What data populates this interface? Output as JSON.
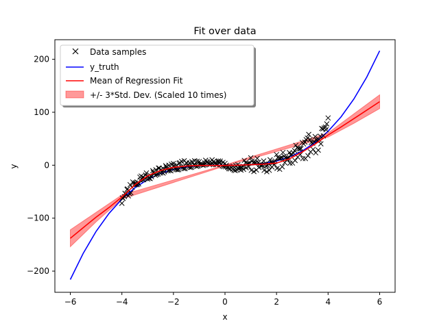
{
  "chart_data": {
    "type": "line",
    "title": "Fit over data",
    "xlabel": "x",
    "ylabel": "y",
    "xlim": [
      -6.6,
      6.6
    ],
    "ylim": [
      -240,
      237
    ],
    "xticks": [
      -6,
      -4,
      -2,
      0,
      2,
      4,
      6
    ],
    "yticks": [
      -200,
      -100,
      0,
      100,
      200
    ],
    "grid": false,
    "legend_position": "top-left",
    "legend": [
      {
        "label": "Data samples",
        "kind": "marker",
        "color": "#000000"
      },
      {
        "label": "y_truth",
        "kind": "line",
        "color": "#0000ff"
      },
      {
        "label": "Mean of Regression Fit",
        "kind": "line",
        "color": "#ff0000"
      },
      {
        "label": "+/- 3*Std. Dev. (Scaled 10 times)",
        "kind": "band",
        "color": "#ff0000"
      }
    ],
    "series": [
      {
        "name": "y_truth",
        "color": "#0000ff",
        "x": [
          -6.0,
          -5.5,
          -5.0,
          -4.5,
          -4.0,
          -3.5,
          -3.0,
          -2.5,
          -2.0,
          -1.5,
          -1.0,
          -0.5,
          0.0,
          0.5,
          1.0,
          1.5,
          2.0,
          2.5,
          3.0,
          3.5,
          4.0,
          4.5,
          5.0,
          5.5,
          6.0
        ],
        "y": [
          -216.0,
          -166.4,
          -125.0,
          -91.1,
          -64.0,
          -42.9,
          -27.0,
          -15.6,
          -8.0,
          -3.4,
          -1.0,
          -0.1,
          0.0,
          0.1,
          1.0,
          3.4,
          8.0,
          15.6,
          27.0,
          42.9,
          64.0,
          91.1,
          125.0,
          166.4,
          216.0
        ]
      },
      {
        "name": "Mean of Regression Fit",
        "color": "#ff0000",
        "x": [
          -6.0,
          -5.5,
          -5.0,
          -4.5,
          -4.0,
          -3.5,
          -3.0,
          -2.5,
          -2.0,
          -1.5,
          -1.0,
          -0.5,
          0.0,
          0.5,
          1.0,
          1.5,
          2.0,
          2.5,
          3.0,
          3.5,
          4.0,
          4.5,
          5.0,
          5.5,
          6.0
        ],
        "y": [
          -138.0,
          -118.0,
          -98.0,
          -80.0,
          -60.0,
          -37.0,
          -20.0,
          -10.0,
          -4.0,
          -1.5,
          -0.5,
          -0.5,
          -0.5,
          0.0,
          1.0,
          2.0,
          4.0,
          12.0,
          25.0,
          40.0,
          57.0,
          72.0,
          88.0,
          104.0,
          120.0
        ]
      },
      {
        "name": "+/- 3*Std. Dev. (Scaled 10 times)",
        "color": "#ff0000",
        "x": [
          -6.0,
          -5.0,
          -4.0,
          0.0,
          4.0,
          5.0,
          6.0
        ],
        "lower": [
          -154.0,
          -107.0,
          -64.0,
          -1.5,
          53.0,
          79.0,
          107.0
        ],
        "upper": [
          -122.0,
          -89.0,
          -56.0,
          0.5,
          61.0,
          97.0,
          133.0
        ]
      }
    ],
    "scatter": {
      "name": "Data samples",
      "marker": "x",
      "color": "#000000",
      "x": [
        -4.0,
        -3.95,
        -3.9,
        -3.85,
        -3.8,
        -3.75,
        -3.7,
        -3.65,
        -3.6,
        -3.55,
        -3.5,
        -3.45,
        -3.4,
        -3.35,
        -3.3,
        -3.25,
        -3.2,
        -3.15,
        -3.1,
        -3.05,
        -3.0,
        -2.95,
        -2.9,
        -2.85,
        -2.8,
        -2.75,
        -2.7,
        -2.65,
        -2.6,
        -2.55,
        -2.5,
        -2.45,
        -2.4,
        -2.35,
        -2.3,
        -2.25,
        -2.2,
        -2.15,
        -2.1,
        -2.05,
        -2.0,
        -1.95,
        -1.9,
        -1.85,
        -1.8,
        -1.75,
        -1.7,
        -1.65,
        -1.6,
        -1.55,
        -1.5,
        -1.45,
        -1.4,
        -1.35,
        -1.3,
        -1.25,
        -1.2,
        -1.15,
        -1.1,
        -1.05,
        -1.0,
        -0.95,
        -0.9,
        -0.85,
        -0.8,
        -0.75,
        -0.7,
        -0.65,
        -0.6,
        -0.55,
        -0.5,
        -0.45,
        -0.4,
        -0.35,
        -0.3,
        -0.25,
        -0.2,
        -0.15,
        -0.1,
        -0.05,
        0.0,
        0.05,
        0.1,
        0.15,
        0.2,
        0.25,
        0.3,
        0.35,
        0.4,
        0.45,
        0.5,
        0.55,
        0.6,
        0.65,
        0.7,
        0.75,
        0.8,
        0.85,
        0.9,
        0.95,
        1.0,
        1.05,
        1.1,
        1.15,
        1.2,
        1.25,
        1.3,
        1.35,
        1.4,
        1.45,
        1.5,
        1.55,
        1.6,
        1.65,
        1.7,
        1.75,
        1.8,
        1.85,
        1.9,
        1.95,
        2.0,
        2.05,
        2.1,
        2.15,
        2.2,
        2.25,
        2.3,
        2.35,
        2.4,
        2.45,
        2.5,
        2.55,
        2.6,
        2.65,
        2.7,
        2.75,
        2.8,
        2.85,
        2.9,
        2.95,
        3.0,
        3.05,
        3.1,
        3.15,
        3.2,
        3.25,
        3.3,
        3.35,
        3.4,
        3.45,
        3.5,
        3.55,
        3.6,
        3.65,
        3.7,
        3.75,
        3.8,
        3.85,
        3.9,
        3.95,
        4.0,
        -3.98,
        -3.88,
        -3.78,
        -3.68,
        -3.58,
        -3.48,
        -3.38,
        -3.28,
        -3.18,
        -3.08,
        -2.98,
        -2.88,
        -2.78,
        -2.68,
        -2.58,
        -2.48,
        -2.38,
        -2.28,
        -2.18,
        -2.08,
        -1.98,
        -1.88,
        -1.78,
        -1.68,
        -1.58,
        -1.48,
        -1.38,
        -1.28,
        -1.18,
        -1.08,
        -0.98,
        -0.88,
        -0.78,
        -0.68,
        -0.58,
        -0.48,
        -0.38,
        -0.28,
        -0.18,
        -0.08,
        0.02,
        0.12,
        0.22,
        0.32,
        0.42,
        0.52,
        0.62,
        0.72,
        0.82,
        0.92,
        1.02,
        1.12,
        1.22,
        1.32,
        1.42,
        1.52,
        1.62,
        1.72,
        1.82,
        1.92,
        2.02,
        2.12,
        2.22,
        2.32,
        2.42,
        2.52,
        2.62,
        2.72,
        2.82,
        2.92,
        3.02,
        3.12,
        3.22,
        3.32,
        3.42,
        3.52,
        3.62,
        3.72,
        3.82,
        3.92
      ],
      "y": [
        -72.0,
        -62.6,
        -59.3,
        -54.6,
        -46.0,
        -57.8,
        -53.9,
        -52.0,
        -41.9,
        -33.2,
        -37.0,
        -36.8,
        -36.5,
        -35.2,
        -22.6,
        -20.5,
        -27.6,
        -27.4,
        -24.9,
        -14.7,
        -26.0,
        -24.6,
        -25.3,
        -21.8,
        -10.4,
        -15.3,
        -19.0,
        -17.6,
        -16.8,
        -5.7,
        -14.8,
        -13.4,
        -14.9,
        -12.5,
        -0.8,
        -7.3,
        -10.4,
        -9.6,
        -10.5,
        -5.6,
        3.3,
        -6.4,
        -7.9,
        -8.6,
        -8.5,
        4.7,
        -3.3,
        -5.1,
        -6.4,
        -6.5,
        4.3,
        -1.7,
        -3.2,
        -4.3,
        -4.1,
        5.0,
        0.1,
        -1.0,
        -2.3,
        -1.5,
        6.8,
        2.3,
        0.8,
        -0.5,
        0.6,
        9.4,
        5.0,
        2.8,
        1.0,
        2.0,
        10.1,
        6.5,
        3.6,
        1.1,
        1.1,
        8.1,
        4.8,
        1.4,
        -1.5,
        -2.6,
        3.4,
        0.0,
        -3.4,
        -6.5,
        -7.0,
        -4.4,
        -7.3,
        -9.3,
        -10.1,
        -8.3,
        1.0,
        -3.3,
        -4.8,
        -3.9,
        -2.2,
        9.1,
        4.4,
        2.7,
        3.1,
        4.1,
        14.0,
        7.7,
        4.8,
        4.3,
        4.4,
        12.9,
        5.1,
        1.2,
        0.2,
        0.5,
        8.1,
        1.1,
        -1.4,
        -0.2,
        2.2,
        10.2,
        4.8,
        4.2,
        6.3,
        8.0,
        20.1,
        14.5,
        12.8,
        13.4,
        14.4,
        24.1,
        16.9,
        14.0,
        13.3,
        13.7,
        23.8,
        19.2,
        20.5,
        23.2,
        27.6,
        37.5,
        33.3,
        31.4,
        30.8,
        31.5,
        42.8,
        40.1,
        43.6,
        48.3,
        51.3,
        58.1,
        48.6,
        43.0,
        41.6,
        44.5,
        54.1,
        47.5,
        46.3,
        48.3,
        54.7,
        69.4,
        68.5,
        70.3,
        72.0,
        78.0,
        89.3,
        -61.9,
        -53.1,
        -44.8,
        -36.8,
        -31.6,
        -33.5,
        -32.5,
        -28.3,
        -22.7,
        -18.6,
        -21.4,
        -19.8,
        -13.2,
        -8.6,
        -5.4,
        -8.1,
        -7.3,
        -3.4,
        0.1,
        2.0,
        -1.0,
        0.1,
        3.5,
        7.0,
        8.3,
        4.0,
        4.3,
        6.8,
        8.3,
        7.4,
        1.6,
        1.8,
        4.4,
        6.5,
        6.7,
        3.2,
        4.9,
        7.0,
        7.8,
        5.3,
        -3.0,
        -4.3,
        -3.1,
        -2.0,
        -0.7,
        -6.6,
        -9.2,
        -7.8,
        -4.7,
        -2.7,
        -9.7,
        -12.0,
        -9.1,
        -4.2,
        -1.7,
        -9.7,
        -12.3,
        -9.6,
        -3.3,
        1.2,
        -6.0,
        -7.7,
        -2.9,
        4.8,
        10.6,
        3.8,
        4.1,
        8.8,
        15.3,
        20.0,
        12.5,
        12.5,
        17.9,
        25.1,
        29.9,
        23.4,
        28.4,
        40.4,
        55.4,
        67.2
      ]
    }
  }
}
